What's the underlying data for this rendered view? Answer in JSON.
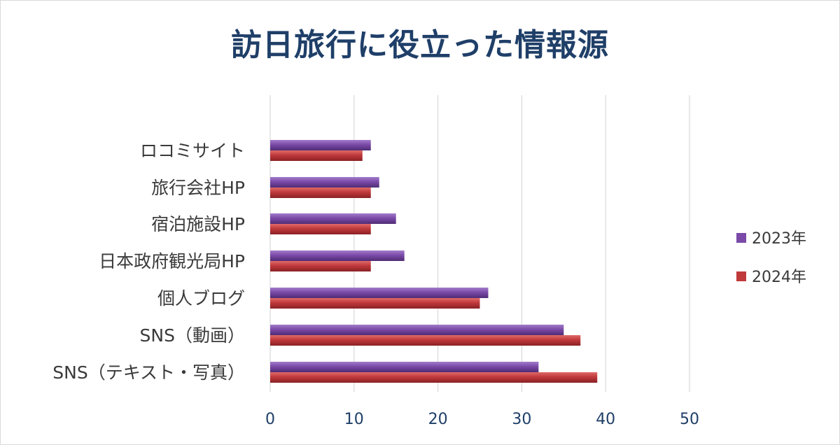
{
  "chart_data": {
    "type": "bar",
    "orientation": "horizontal",
    "title": "訪日旅行に役立った情報源",
    "categories": [
      "ロコミサイト",
      "旅行会社HP",
      "宿泊施設HP",
      "日本政府観光局HP",
      "個人ブログ",
      "SNS（動画）",
      "SNS（テキスト・写真）"
    ],
    "series": [
      {
        "name": "2023年",
        "color": "#7b4aa8",
        "values": [
          12,
          13,
          15,
          16,
          26,
          35,
          32
        ]
      },
      {
        "name": "2024年",
        "color": "#c0393b",
        "values": [
          11,
          12,
          12,
          12,
          25,
          37,
          39
        ]
      }
    ],
    "xlim": [
      0,
      50
    ],
    "xticks": [
      "0",
      "10",
      "20",
      "30",
      "40",
      "50"
    ],
    "grid": true,
    "legend": "right"
  }
}
